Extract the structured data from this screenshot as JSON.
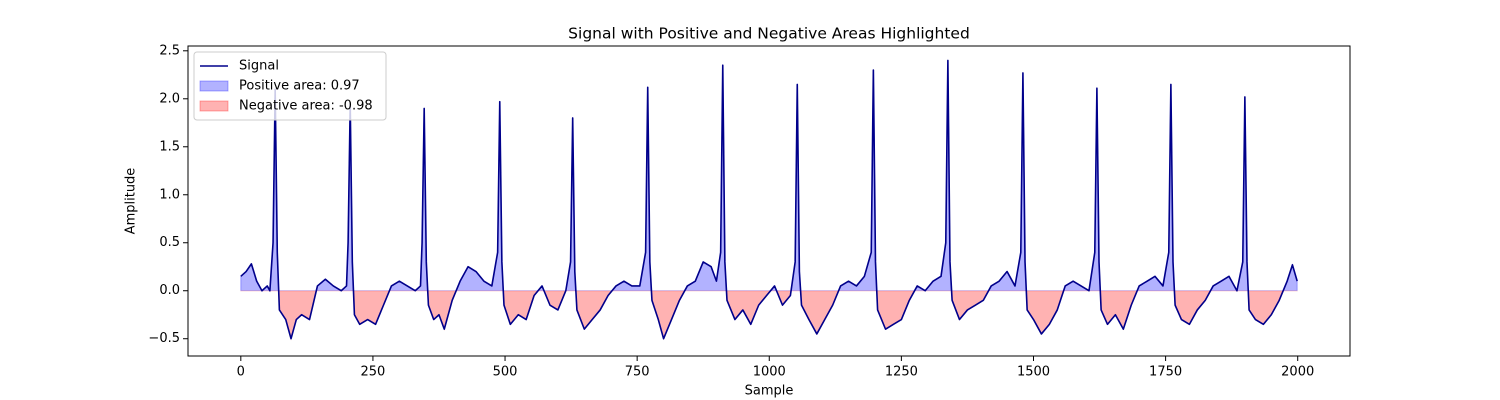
{
  "chart_data": {
    "type": "line",
    "title": "Signal with Positive and Negative Areas Highlighted",
    "xlabel": "Sample",
    "ylabel": "Amplitude",
    "x": [
      0,
      10,
      20,
      30,
      40,
      50,
      55,
      61,
      65,
      69,
      73,
      85,
      95,
      105,
      115,
      130,
      145,
      160,
      175,
      190,
      200,
      203,
      207,
      211,
      215,
      225,
      240,
      255,
      270,
      285,
      300,
      315,
      330,
      340,
      343,
      347,
      351,
      355,
      365,
      375,
      385,
      400,
      415,
      430,
      445,
      460,
      475,
      486,
      490,
      494,
      498,
      510,
      525,
      540,
      555,
      570,
      585,
      600,
      615,
      624,
      628,
      632,
      636,
      650,
      665,
      680,
      695,
      710,
      725,
      740,
      755,
      766,
      770,
      774,
      778,
      790,
      800,
      815,
      830,
      845,
      860,
      875,
      890,
      900,
      908,
      912,
      916,
      920,
      935,
      950,
      965,
      980,
      995,
      1010,
      1025,
      1040,
      1049,
      1053,
      1057,
      1061,
      1075,
      1090,
      1105,
      1120,
      1135,
      1150,
      1165,
      1180,
      1193,
      1197,
      1201,
      1205,
      1220,
      1235,
      1250,
      1265,
      1280,
      1295,
      1310,
      1325,
      1334,
      1338,
      1342,
      1346,
      1360,
      1375,
      1390,
      1405,
      1420,
      1435,
      1450,
      1465,
      1476,
      1480,
      1484,
      1488,
      1500,
      1515,
      1530,
      1545,
      1560,
      1575,
      1590,
      1605,
      1616,
      1620,
      1624,
      1628,
      1640,
      1655,
      1670,
      1685,
      1700,
      1715,
      1730,
      1745,
      1756,
      1760,
      1764,
      1768,
      1780,
      1795,
      1810,
      1825,
      1840,
      1855,
      1870,
      1885,
      1896,
      1900,
      1904,
      1908,
      1920,
      1935,
      1950,
      1965,
      1980,
      1990,
      1999
    ],
    "series": [
      {
        "name": "Signal",
        "color": "#00008b",
        "values": [
          0.15,
          0.2,
          0.28,
          0.1,
          0.0,
          0.05,
          0.0,
          0.5,
          2.1,
          0.4,
          -0.2,
          -0.3,
          -0.5,
          -0.3,
          -0.25,
          -0.3,
          0.05,
          0.12,
          0.05,
          0.0,
          0.05,
          0.5,
          1.95,
          0.3,
          -0.25,
          -0.35,
          -0.3,
          -0.35,
          -0.15,
          0.05,
          0.1,
          0.05,
          0.0,
          0.05,
          0.5,
          1.9,
          0.3,
          -0.15,
          -0.3,
          -0.25,
          -0.4,
          -0.1,
          0.1,
          0.25,
          0.2,
          0.1,
          0.05,
          0.4,
          1.97,
          0.3,
          -0.15,
          -0.35,
          -0.25,
          -0.3,
          -0.05,
          0.05,
          -0.15,
          -0.2,
          0.0,
          0.3,
          1.8,
          0.2,
          -0.2,
          -0.4,
          -0.3,
          -0.2,
          -0.05,
          0.05,
          0.1,
          0.05,
          0.05,
          0.4,
          2.12,
          0.3,
          -0.1,
          -0.3,
          -0.5,
          -0.3,
          -0.1,
          0.05,
          0.1,
          0.3,
          0.25,
          0.1,
          0.4,
          2.35,
          0.3,
          -0.1,
          -0.3,
          -0.2,
          -0.35,
          -0.15,
          -0.05,
          0.05,
          -0.15,
          -0.05,
          0.3,
          2.15,
          0.2,
          -0.15,
          -0.3,
          -0.45,
          -0.3,
          -0.15,
          0.05,
          0.1,
          0.05,
          0.15,
          0.4,
          2.3,
          0.3,
          -0.2,
          -0.4,
          -0.35,
          -0.3,
          -0.1,
          0.05,
          0.0,
          0.1,
          0.15,
          0.5,
          2.4,
          0.3,
          -0.1,
          -0.3,
          -0.2,
          -0.15,
          -0.1,
          0.05,
          0.1,
          0.2,
          0.05,
          0.4,
          2.27,
          0.3,
          -0.2,
          -0.3,
          -0.45,
          -0.35,
          -0.2,
          0.05,
          0.1,
          0.05,
          0.0,
          0.4,
          2.11,
          0.3,
          -0.2,
          -0.35,
          -0.25,
          -0.4,
          -0.15,
          0.05,
          0.1,
          0.15,
          0.05,
          0.4,
          2.15,
          0.3,
          -0.15,
          -0.3,
          -0.35,
          -0.2,
          -0.1,
          0.05,
          0.1,
          0.15,
          0.0,
          0.3,
          2.02,
          0.3,
          -0.2,
          -0.3,
          -0.35,
          -0.25,
          -0.1,
          0.1,
          0.27,
          0.1
        ]
      }
    ],
    "fills": [
      {
        "name": "Positive area: 0.97",
        "color": "#0000ff",
        "side": "positive"
      },
      {
        "name": "Negative area: -0.98",
        "color": "#ff0000",
        "side": "negative"
      }
    ],
    "xlim": [
      -99.95,
      2098.95
    ],
    "xticks": [
      0,
      250,
      500,
      750,
      1000,
      1250,
      1500,
      1750,
      2000
    ],
    "ylim": [
      -0.68,
      2.55
    ],
    "yticks": [
      {
        "value": -0.5,
        "label": "−0.5"
      },
      {
        "value": 0,
        "label": "0.0"
      },
      0.5,
      {
        "value": 1,
        "label": "1.0"
      },
      1.5,
      {
        "value": 2,
        "label": "2.0"
      },
      2.5
    ],
    "legend": "upper left"
  }
}
